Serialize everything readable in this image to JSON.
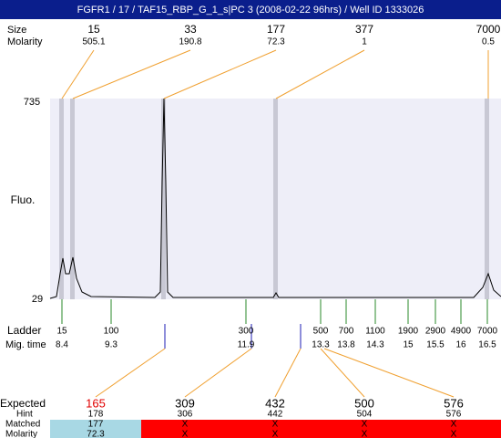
{
  "header": {
    "title": "FGFR1 / 17 / TAF15_RBP_G_1_s|PC 3 (2008-02-22 96hrs) / Well ID 1333026"
  },
  "top": {
    "size_label": "Size",
    "molarity_label": "Molarity",
    "markers": [
      {
        "size": "15",
        "molarity": "505.1"
      },
      {
        "size": "33",
        "molarity": "190.8"
      },
      {
        "size": "177",
        "molarity": "72.3"
      },
      {
        "size": "377",
        "molarity": "1"
      },
      {
        "size": "7000",
        "molarity": "0.5"
      }
    ]
  },
  "y_axis": {
    "label": "Fluo.",
    "max": "735",
    "min": "29"
  },
  "ladder": {
    "label": "Ladder",
    "time_label": "Mig. time",
    "sizes": [
      "15",
      "100",
      "300",
      "500",
      "700",
      "1100",
      "1900",
      "2900",
      "4900",
      "7000"
    ],
    "times": [
      "8.4",
      "9.3",
      "11.9",
      "13.3",
      "13.8",
      "14.3",
      "15",
      "15.5",
      "16",
      "16.5"
    ]
  },
  "table": {
    "expected_label": "Expected",
    "hint_label": "Hint",
    "matched_label": "Matched",
    "molarity_label": "Molarity",
    "columns": [
      {
        "expected": "165",
        "hint": "178",
        "matched": "177",
        "molarity": "72.3"
      },
      {
        "expected": "309",
        "hint": "306",
        "matched": "X",
        "molarity": "X"
      },
      {
        "expected": "432",
        "hint": "442",
        "matched": "X",
        "molarity": "X"
      },
      {
        "expected": "500",
        "hint": "504",
        "matched": "X",
        "molarity": "X"
      },
      {
        "expected": "576",
        "hint": "576",
        "matched": "X",
        "molarity": "X"
      }
    ]
  }
}
